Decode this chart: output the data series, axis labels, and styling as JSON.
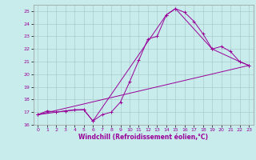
{
  "title": "",
  "xlabel": "Windchill (Refroidissement éolien,°C)",
  "bg_color": "#c8ecec",
  "line_color": "#990099",
  "grid_color": "#aacccc",
  "xlim": [
    -0.5,
    23.5
  ],
  "ylim": [
    16,
    25.5
  ],
  "yticks": [
    16,
    17,
    18,
    19,
    20,
    21,
    22,
    23,
    24,
    25
  ],
  "xticks": [
    0,
    1,
    2,
    3,
    4,
    5,
    6,
    7,
    8,
    9,
    10,
    11,
    12,
    13,
    14,
    15,
    16,
    17,
    18,
    19,
    20,
    21,
    22,
    23
  ],
  "line1_x": [
    0,
    1,
    2,
    3,
    4,
    5,
    6,
    7,
    8,
    9,
    10,
    11,
    12,
    13,
    14,
    15,
    16,
    17,
    18,
    19,
    20,
    21,
    22,
    23
  ],
  "line1_y": [
    16.8,
    17.1,
    17.0,
    17.1,
    17.2,
    17.2,
    16.3,
    16.8,
    17.0,
    17.8,
    19.4,
    21.1,
    22.8,
    23.0,
    24.7,
    25.2,
    24.9,
    24.2,
    23.2,
    22.0,
    22.2,
    21.8,
    21.0,
    20.7
  ],
  "line2_x": [
    0,
    3,
    5,
    6,
    14,
    15,
    19,
    22,
    23
  ],
  "line2_y": [
    16.8,
    17.1,
    17.2,
    16.3,
    24.7,
    25.2,
    22.0,
    21.0,
    20.7
  ],
  "line3_x": [
    0,
    23
  ],
  "line3_y": [
    16.8,
    20.7
  ]
}
